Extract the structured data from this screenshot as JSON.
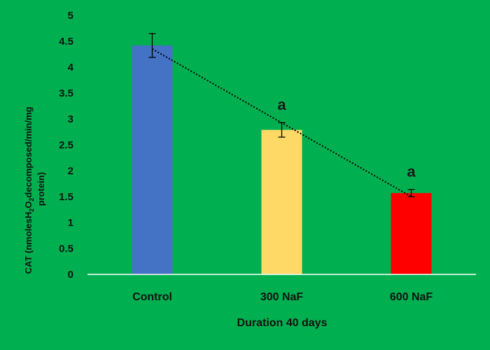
{
  "chart_data": {
    "type": "bar",
    "categories": [
      "Control",
      "300 NaF",
      "600 NaF"
    ],
    "values": [
      4.42,
      2.79,
      1.57
    ],
    "errors": [
      0.23,
      0.14,
      0.07
    ],
    "annotations": [
      "",
      "a",
      "a"
    ],
    "bar_colors": [
      "#4472C4",
      "#FFD966",
      "#FF0000"
    ],
    "xlabel": "Duration 40 days",
    "ylabel_parts": {
      "line1_pre": "CAT (nmolesH",
      "sub1": "2",
      "mid": "O",
      "sub2": "2",
      "line1_post": "decomposed/min/mg",
      "line2": "protein)"
    },
    "ylim": [
      0,
      5
    ],
    "yticks": [
      "0",
      "0.5",
      "1",
      "1.5",
      "2",
      "2.5",
      "3",
      "3.5",
      "4",
      "4.5",
      "5"
    ],
    "trendline": "linear-dotted",
    "grid": false,
    "legend": "none",
    "background": "#00B050"
  }
}
